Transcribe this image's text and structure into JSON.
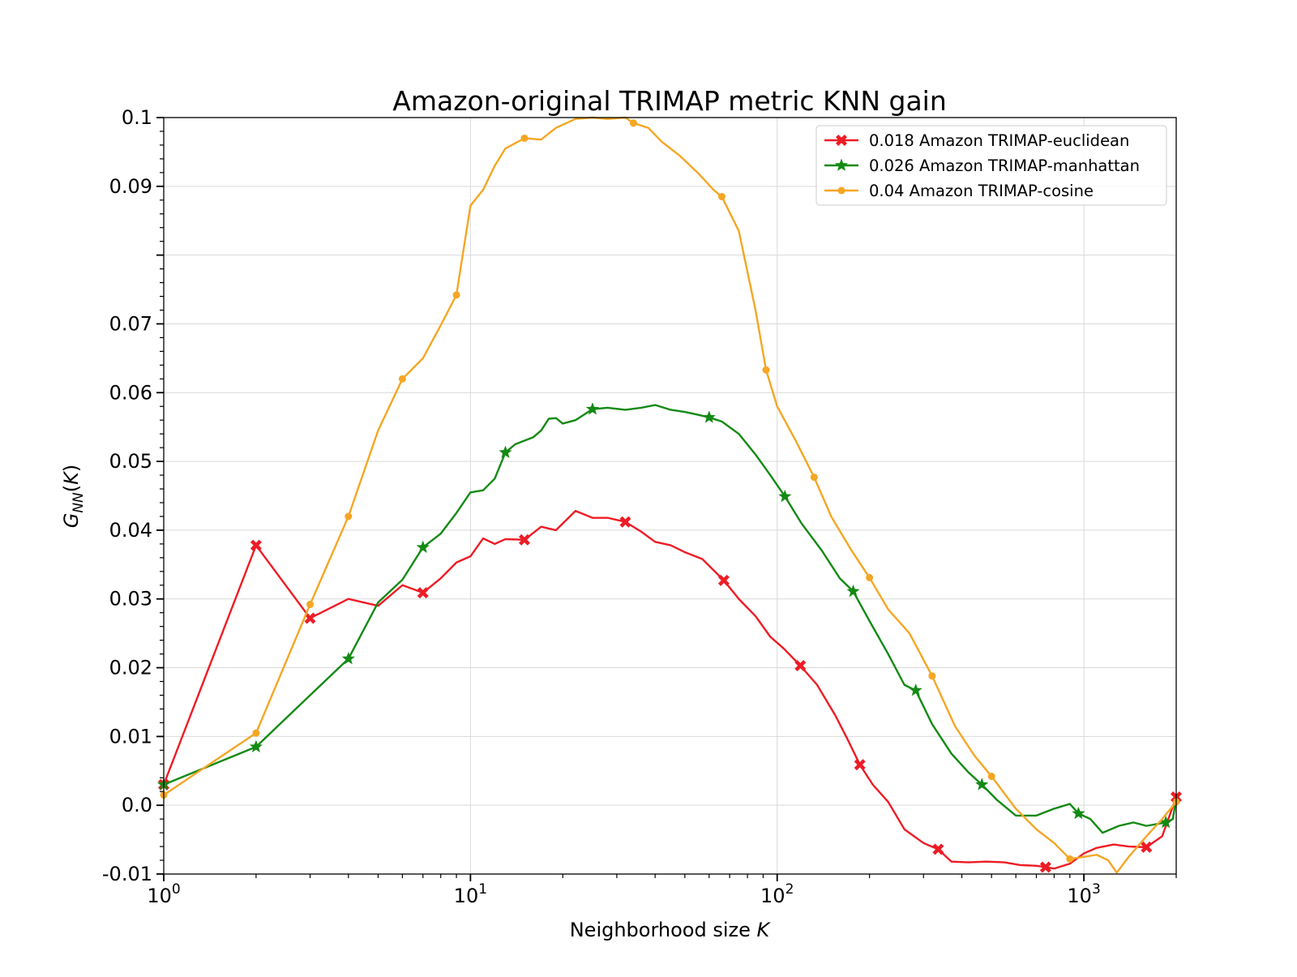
{
  "chart_data": {
    "type": "line",
    "title": "Amazon-original TRIMAP metric KNN gain",
    "xlabel": "Neighborhood size K",
    "ylabel": "G_NN(K)",
    "xscale": "log",
    "xlim": [
      1,
      2000
    ],
    "ylim": [
      -0.01,
      0.1
    ],
    "grid": true,
    "legend_position": "top-right",
    "x_ticks": [
      {
        "value": 1,
        "base": "10",
        "exp": "0"
      },
      {
        "value": 10,
        "base": "10",
        "exp": "1"
      },
      {
        "value": 100,
        "base": "10",
        "exp": "2"
      },
      {
        "value": 1000,
        "base": "10",
        "exp": "3"
      }
    ],
    "y_ticks": [
      {
        "value": -0.01,
        "label": "-0.01"
      },
      {
        "value": 0.0,
        "label": "0.0"
      },
      {
        "value": 0.01,
        "label": "0.01"
      },
      {
        "value": 0.02,
        "label": "0.02"
      },
      {
        "value": 0.03,
        "label": "0.03"
      },
      {
        "value": 0.04,
        "label": "0.04"
      },
      {
        "value": 0.05,
        "label": "0.05"
      },
      {
        "value": 0.06,
        "label": "0.06"
      },
      {
        "value": 0.07,
        "label": "0.07"
      },
      {
        "value": 0.09,
        "label": "0.09"
      },
      {
        "value": 0.1,
        "label": "0.1"
      }
    ],
    "series": [
      {
        "name": "0.018 Amazon TRIMAP-euclidean",
        "color": "#ee1c25",
        "marker": "x",
        "x": [
          1,
          2,
          3,
          4,
          5,
          6,
          7,
          8,
          9,
          10,
          11,
          12,
          13,
          15,
          17,
          19,
          22,
          25,
          28,
          32,
          36,
          40,
          45,
          50,
          57,
          67,
          75,
          85,
          95,
          105,
          119,
          135,
          155,
          170,
          186,
          205,
          230,
          260,
          300,
          335,
          370,
          420,
          480,
          550,
          620,
          700,
          750,
          800,
          900,
          1000,
          1100,
          1250,
          1400,
          1600,
          1800,
          2000
        ],
        "y": [
          0.003,
          0.0378,
          0.0272,
          0.03,
          0.029,
          0.032,
          0.0309,
          0.033,
          0.0353,
          0.0362,
          0.0388,
          0.038,
          0.0387,
          0.0386,
          0.0405,
          0.04,
          0.0428,
          0.0418,
          0.0418,
          0.0412,
          0.0398,
          0.0383,
          0.0378,
          0.0368,
          0.0358,
          0.0327,
          0.03,
          0.0275,
          0.0245,
          0.0228,
          0.0203,
          0.0175,
          0.013,
          0.0095,
          0.0059,
          0.003,
          0.0005,
          -0.0035,
          -0.0055,
          -0.0064,
          -0.0082,
          -0.0083,
          -0.0082,
          -0.0083,
          -0.0087,
          -0.0088,
          -0.009,
          -0.0092,
          -0.0085,
          -0.007,
          -0.0062,
          -0.0057,
          -0.006,
          -0.0061,
          -0.0045,
          0.0012
        ],
        "markers_x": [
          1,
          2,
          3,
          7,
          15,
          32,
          67,
          119,
          186,
          335,
          750,
          1600,
          2000
        ],
        "markers_y": [
          0.003,
          0.0378,
          0.0272,
          0.0309,
          0.0386,
          0.0412,
          0.0327,
          0.0203,
          0.0059,
          -0.0064,
          -0.009,
          -0.0061,
          0.0012
        ]
      },
      {
        "name": "0.026 Amazon TRIMAP-manhattan",
        "color": "#138a13",
        "marker": "star",
        "x": [
          1,
          2,
          3,
          4,
          5,
          6,
          7,
          8,
          9,
          10,
          11,
          12,
          13,
          14,
          16,
          17,
          18,
          19,
          20,
          22,
          25,
          28,
          32,
          36,
          40,
          45,
          50,
          55,
          60,
          66,
          75,
          85,
          95,
          106,
          120,
          140,
          160,
          177,
          200,
          230,
          260,
          283,
          320,
          370,
          420,
          465,
          520,
          600,
          700,
          800,
          900,
          960,
          1050,
          1150,
          1300,
          1450,
          1600,
          1850,
          1950,
          2000
        ],
        "y": [
          0.003,
          0.0085,
          0.016,
          0.0213,
          0.0295,
          0.0328,
          0.0375,
          0.0395,
          0.0425,
          0.0455,
          0.0458,
          0.0475,
          0.0513,
          0.0525,
          0.0535,
          0.0545,
          0.0562,
          0.0563,
          0.0555,
          0.056,
          0.0576,
          0.0578,
          0.0575,
          0.0578,
          0.0582,
          0.0575,
          0.0572,
          0.0568,
          0.0564,
          0.0558,
          0.054,
          0.051,
          0.048,
          0.0449,
          0.041,
          0.037,
          0.033,
          0.0311,
          0.0268,
          0.022,
          0.0175,
          0.0167,
          0.0118,
          0.0075,
          0.0048,
          0.003,
          0.0008,
          -0.0015,
          -0.0015,
          -0.0005,
          0.0002,
          -0.0012,
          -0.002,
          -0.004,
          -0.003,
          -0.0025,
          -0.003,
          -0.0025,
          -0.002,
          0.001
        ],
        "markers_x": [
          1,
          2,
          4,
          7,
          13,
          25,
          60,
          106,
          177,
          283,
          465,
          960,
          1850
        ],
        "markers_y": [
          0.003,
          0.0085,
          0.0213,
          0.0375,
          0.0513,
          0.0576,
          0.0564,
          0.0449,
          0.0311,
          0.0167,
          0.003,
          -0.0012,
          -0.0025
        ]
      },
      {
        "name": "0.04 Amazon TRIMAP-cosine",
        "color": "#f5a623",
        "marker": "o",
        "x": [
          1,
          2,
          3,
          4,
          5,
          6,
          7,
          8,
          9,
          10,
          11,
          12,
          13,
          15,
          17,
          19,
          22,
          25,
          28,
          32,
          34,
          38,
          42,
          48,
          55,
          62,
          66,
          75,
          85,
          92,
          100,
          115,
          132,
          150,
          175,
          200,
          230,
          270,
          320,
          380,
          440,
          500,
          600,
          700,
          800,
          900,
          1000,
          1100,
          1200,
          1280,
          1400,
          1600,
          1800,
          2000
        ],
        "y": [
          0.0015,
          0.0105,
          0.0292,
          0.042,
          0.0545,
          0.062,
          0.065,
          0.0698,
          0.0742,
          0.0872,
          0.0895,
          0.093,
          0.0955,
          0.097,
          0.0968,
          0.0985,
          0.0998,
          0.1,
          0.0998,
          0.1,
          0.0992,
          0.0985,
          0.0965,
          0.0945,
          0.092,
          0.0895,
          0.0885,
          0.0835,
          0.072,
          0.0633,
          0.058,
          0.053,
          0.0477,
          0.042,
          0.037,
          0.0331,
          0.0285,
          0.025,
          0.0188,
          0.0115,
          0.0072,
          0.0042,
          -0.0005,
          -0.0035,
          -0.0055,
          -0.0078,
          -0.0075,
          -0.0072,
          -0.008,
          -0.0098,
          -0.0075,
          -0.0045,
          -0.002,
          0.0005
        ],
        "markers_x": [
          1,
          2,
          3,
          4,
          6,
          9,
          15,
          34,
          66,
          92,
          132,
          200,
          320,
          500,
          900,
          2000
        ],
        "markers_y": [
          0.0015,
          0.0105,
          0.0292,
          0.042,
          0.062,
          0.0742,
          0.097,
          0.0992,
          0.0885,
          0.0633,
          0.0477,
          0.0331,
          0.0188,
          0.0042,
          -0.0078,
          0.0005
        ]
      }
    ]
  }
}
